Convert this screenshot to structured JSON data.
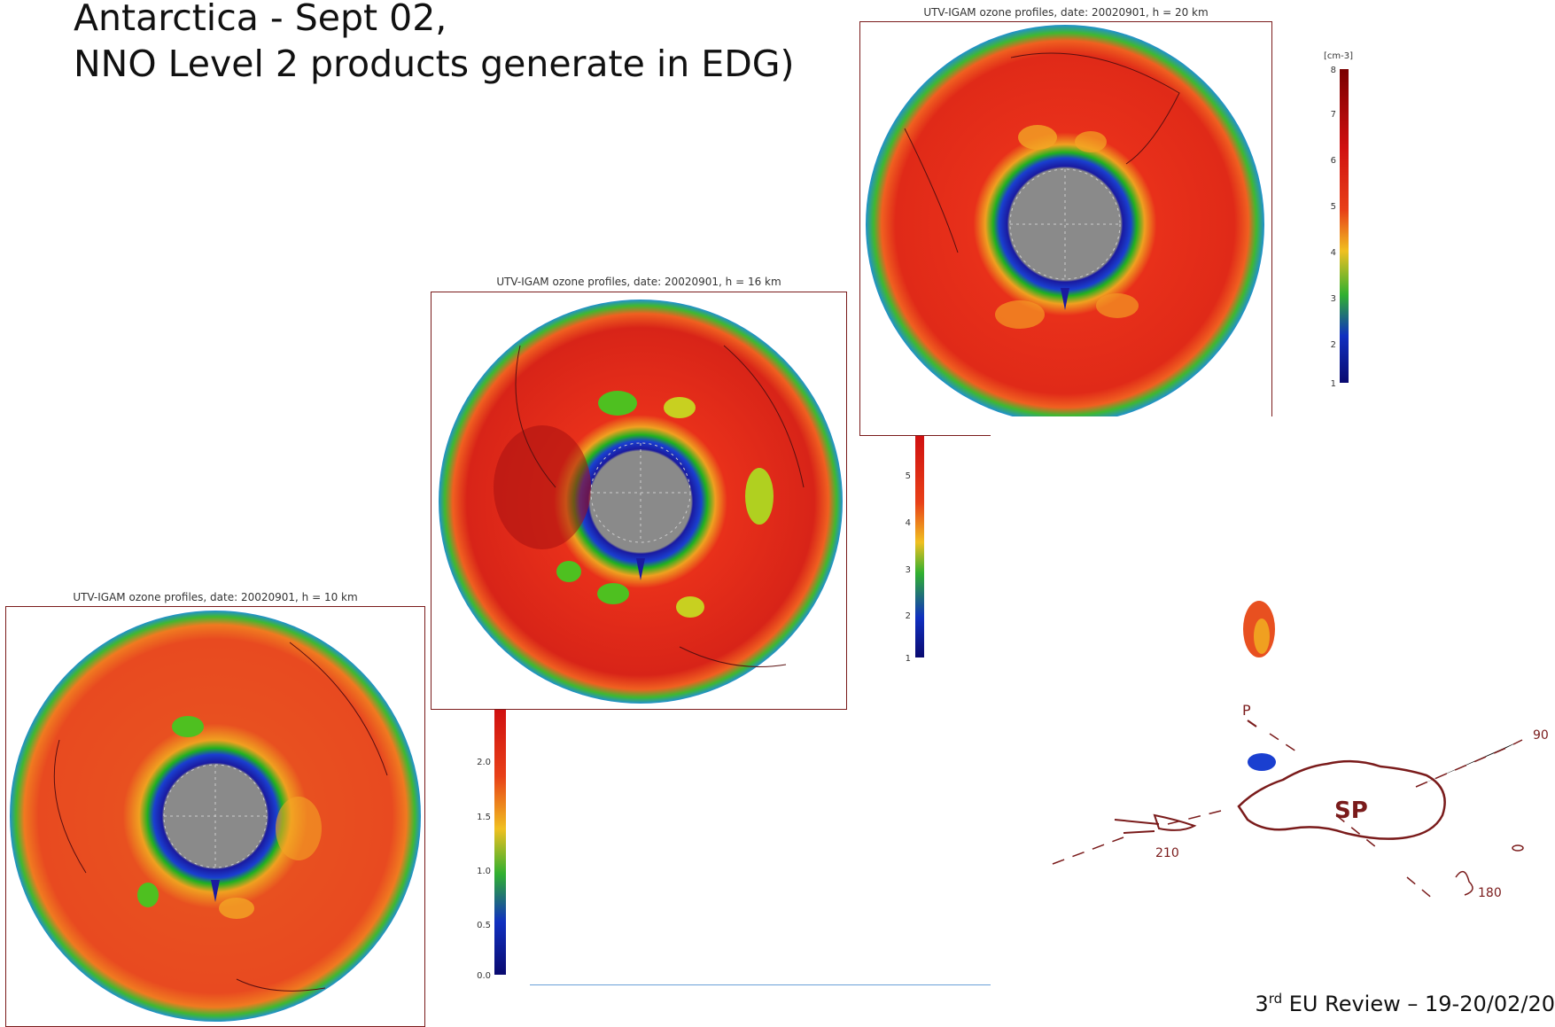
{
  "heading": {
    "line1": "Antarctica - Sept 02,",
    "line2": "NNO Level 2 products generate in EDG)"
  },
  "panels": [
    {
      "id": "h10",
      "title": "UTV-IGAM ozone profiles, date: 20020901, h = 10 km"
    },
    {
      "id": "h16",
      "title": "UTV-IGAM ozone profiles, date: 20020901, h = 16 km"
    },
    {
      "id": "h20",
      "title": "UTV-IGAM ozone profiles, date: 20020901, h = 20 km"
    }
  ],
  "colorbars": {
    "h20": {
      "unit": "[cm-3]",
      "ticks": [
        "8",
        "7",
        "6",
        "5",
        "4",
        "3",
        "2",
        "1"
      ]
    },
    "h16": {
      "ticks": [
        "5",
        "4",
        "3",
        "2",
        "1"
      ]
    },
    "h10": {
      "ticks": [
        "2.0",
        "1.5",
        "1.0",
        "0.5",
        "0.0"
      ]
    }
  },
  "sketch": {
    "center_label": "SP",
    "labels": [
      "90",
      "210",
      "180",
      "P"
    ]
  },
  "footer": {
    "prefix": "3",
    "sup": "rd",
    "text": " EU Review – 19-20/02/20"
  },
  "colors": {
    "ozone_red": "#e8281a",
    "hole_blue": "#1520a0",
    "mask_grey": "#8a8a8a",
    "frame": "#7a1b1b",
    "sketch": "#7a1b1b"
  }
}
